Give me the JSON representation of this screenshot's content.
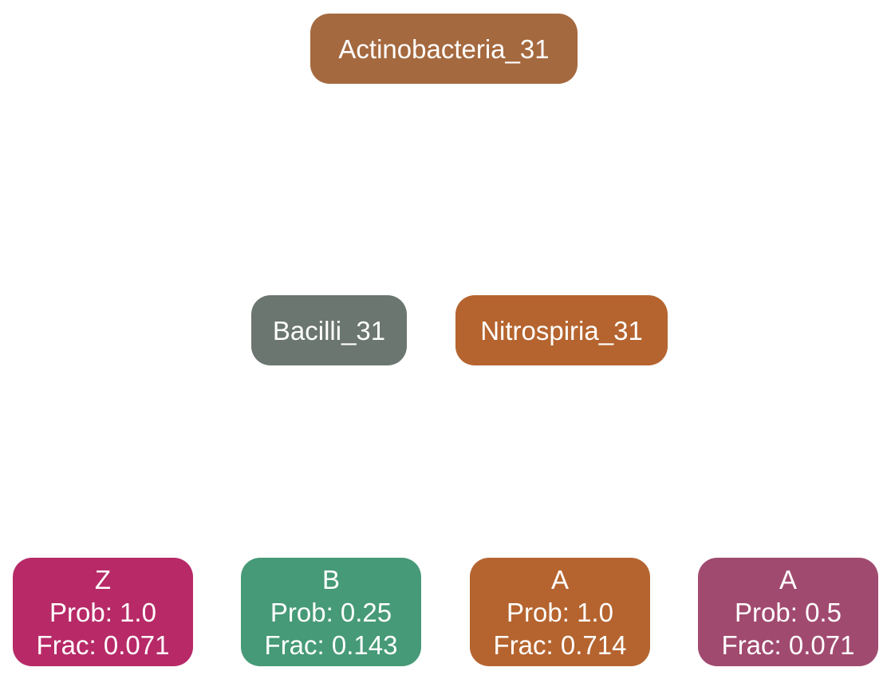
{
  "nodes": {
    "root": {
      "label": "Actinobacteria_31",
      "color": "#a5693f"
    },
    "bacilli": {
      "label": "Bacilli_31",
      "color": "#6b7670"
    },
    "nitrospiria": {
      "label": "Nitrospiria_31",
      "color": "#b5642f"
    },
    "leaves": [
      {
        "name": "Z",
        "prob": "Prob: 1.0",
        "frac": "Frac: 0.071",
        "color": "#b72a67"
      },
      {
        "name": "B",
        "prob": "Prob: 0.25",
        "frac": "Frac: 0.143",
        "color": "#469a77"
      },
      {
        "name": "A",
        "prob": "Prob: 1.0",
        "frac": "Frac: 0.714",
        "color": "#b5642f"
      },
      {
        "name": "A",
        "prob": "Prob: 0.5",
        "frac": "Frac: 0.071",
        "color": "#a14a6f"
      }
    ]
  }
}
